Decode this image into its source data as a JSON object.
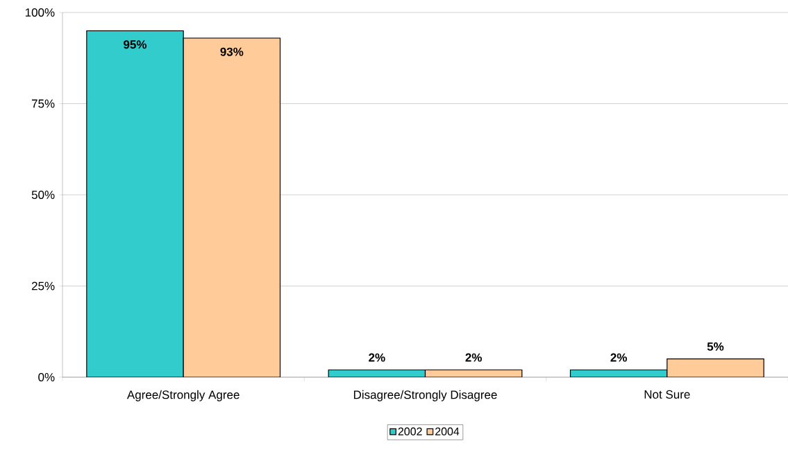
{
  "chart_data": {
    "type": "bar",
    "categories": [
      "Agree/Strongly Agree",
      "Disagree/Strongly Disagree",
      "Not Sure"
    ],
    "series": [
      {
        "name": "2002",
        "color": "#33cccc",
        "values": [
          95,
          2,
          2
        ],
        "value_labels": [
          "95%",
          "2%",
          "2%"
        ]
      },
      {
        "name": "2004",
        "color": "#ffcc99",
        "values": [
          93,
          2,
          5
        ],
        "value_labels": [
          "93%",
          "2%",
          "5%"
        ]
      }
    ],
    "ylim": [
      0,
      100
    ],
    "yticks": [
      {
        "value": 0,
        "label": "0%"
      },
      {
        "value": 25,
        "label": "25%"
      },
      {
        "value": 50,
        "label": "50%"
      },
      {
        "value": 75,
        "label": "75%"
      },
      {
        "value": 100,
        "label": "100%"
      }
    ],
    "grid": "y",
    "legend": "bottom"
  }
}
